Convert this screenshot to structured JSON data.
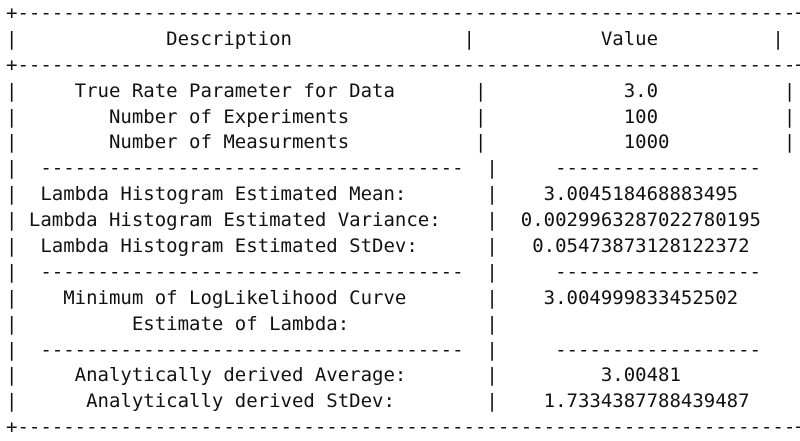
{
  "lines": [
    "+--------------------------------------------------------------------+",
    "|             Description               |           Value          |",
    "+--------------------------------------------------------------------+",
    "|     True Rate Parameter for Data       |            3.0           |",
    "|        Number of Experiments           |            100           |",
    "|        Number of Measurments           |            1000          |",
    "|  -------------------------------------  |     ------------------   |",
    "|  Lambda Histogram Estimated Mean:       |    3.004518468883495     |",
    "| Lambda Histogram Estimated Variance:    |  0.0029963287022780195   |",
    "|  Lambda Histogram Estimated StDev:      |   0.05473873128122372    |",
    "|  -------------------------------------  |     ------------------   |",
    "|    Minimum of LogLikelihood Curve       |    3.004999833452502     |",
    "|          Estimate of Lambda:            |                          |",
    "|  -------------------------------------  |     ------------------   |",
    "|     Analytically derived Average:       |         3.00481          |",
    "|      Analytically derived StDev:        |    1.7334387788439487    |",
    "+--------------------------------------------------------------------+"
  ]
}
